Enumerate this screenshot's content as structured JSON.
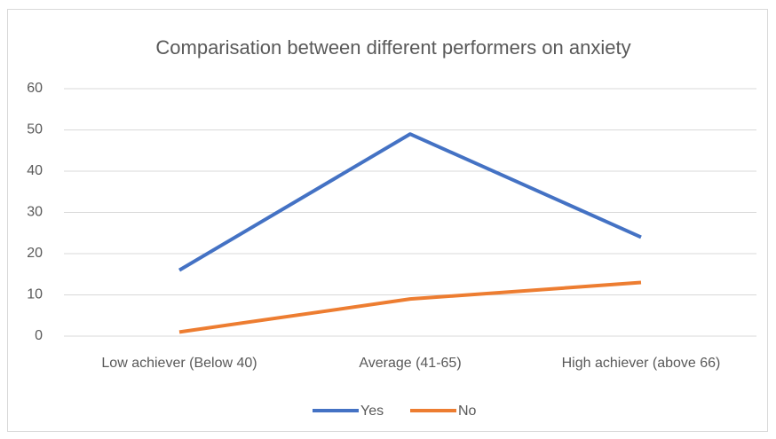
{
  "chart_data": {
    "type": "line",
    "title": "Comparisation between different performers on anxiety",
    "categories": [
      "Low achiever (Below 40)",
      "Average (41-65)",
      "High achiever (above 66)"
    ],
    "series": [
      {
        "name": "Yes",
        "color": "#4472c4",
        "values": [
          16,
          49,
          24
        ]
      },
      {
        "name": "No",
        "color": "#ed7d31",
        "values": [
          1,
          9,
          13
        ]
      }
    ],
    "ylim": [
      0,
      60
    ],
    "yticks": [
      0,
      10,
      20,
      30,
      40,
      50,
      60
    ],
    "grid": true,
    "legend": "bottom"
  }
}
